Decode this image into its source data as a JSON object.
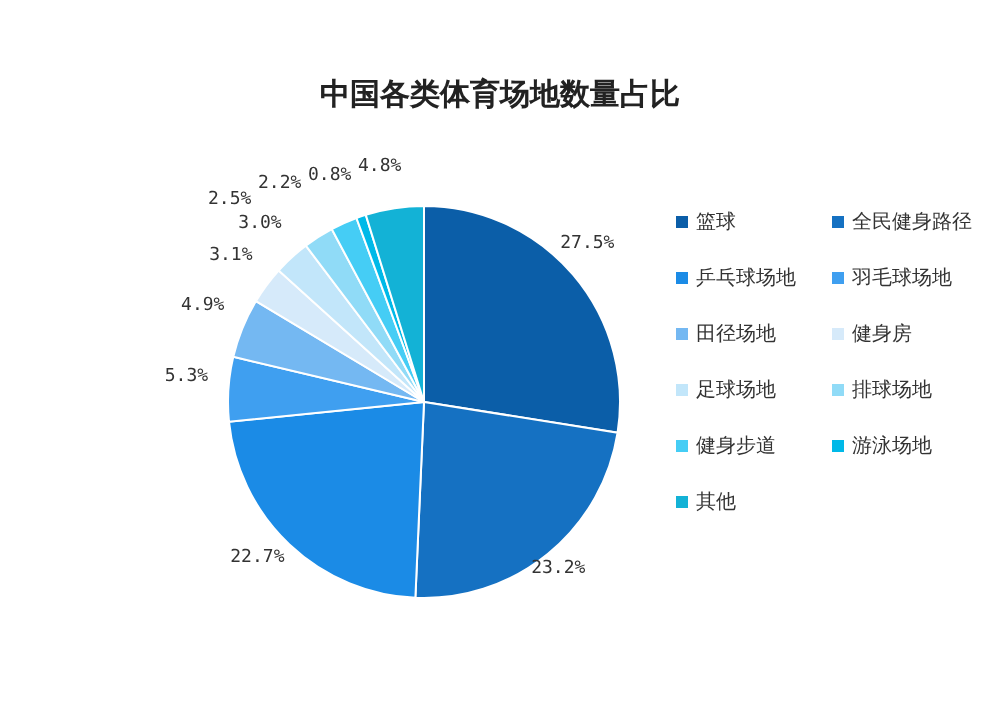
{
  "chart_data": {
    "type": "pie",
    "title": "中国各类体育场地数量占比",
    "categories": [
      "篮球",
      "全民健身路径",
      "乒乓球场地",
      "羽毛球场地",
      "田径场地",
      "健身房",
      "足球场地",
      "排球场地",
      "健身步道",
      "游泳场地",
      "其他"
    ],
    "values": [
      27.5,
      23.2,
      22.7,
      5.3,
      4.9,
      3.1,
      3.0,
      2.5,
      2.2,
      0.8,
      4.8
    ],
    "colors": [
      "#0b5ea8",
      "#1571c2",
      "#1b8be6",
      "#3f9ff0",
      "#74b8f2",
      "#d6eafa",
      "#c2e6fa",
      "#90dbf7",
      "#45cdf5",
      "#00b9e8",
      "#13b2d6"
    ],
    "value_labels": [
      "27.5%",
      "23.2%",
      "22.7%",
      "5.3%",
      "4.9%",
      "3.1%",
      "3.0%",
      "2.5%",
      "2.2%",
      "0.8%",
      "4.8%"
    ],
    "legend": "right"
  }
}
